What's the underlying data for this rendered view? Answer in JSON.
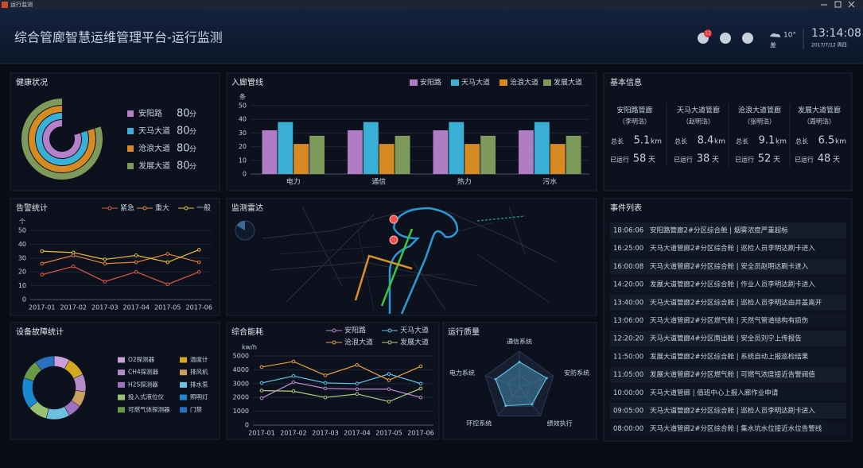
{
  "window": {
    "title": "运行监测"
  },
  "header": {
    "title": "综合管廊智慧运维管理平台-运行监测",
    "badge": 12,
    "temperature": "10°",
    "weather": "差",
    "time": "13:14:08",
    "date": "2017/7/12 周四"
  },
  "chart_data": [
    {
      "type": "radial",
      "title": "健康状况",
      "unit": "分",
      "rlim": [
        0,
        100
      ],
      "categories": [
        "安阳路",
        "天马大道",
        "沧浪大道",
        "发展大道"
      ],
      "values": [
        80,
        80,
        80,
        80
      ],
      "colors": [
        "#b580c8",
        "#3ab0d6",
        "#d88a22",
        "#7e9a5a"
      ]
    },
    {
      "type": "bar",
      "title": "入廊管线",
      "ylabel": "条",
      "categories": [
        "电力",
        "通信",
        "热力",
        "污水"
      ],
      "series": [
        {
          "name": "安阳路",
          "color": "#b07cc6",
          "values": [
            32,
            32,
            32,
            32
          ]
        },
        {
          "name": "天马大道",
          "color": "#3ab0d6",
          "values": [
            38,
            38,
            38,
            38
          ]
        },
        {
          "name": "沧浪大道",
          "color": "#d88a22",
          "values": [
            22,
            22,
            22,
            22
          ]
        },
        {
          "name": "发展大道",
          "color": "#7e9a5a",
          "values": [
            28,
            28,
            28,
            28
          ]
        }
      ],
      "ylim": [
        0,
        50
      ],
      "yticks": [
        0,
        10,
        20,
        30,
        40,
        50
      ],
      "legend": "top-right"
    },
    {
      "type": "line",
      "title": "告警统计",
      "ylabel": "个",
      "categories": [
        "2017-01",
        "2017-02",
        "2017-03",
        "2017-04",
        "2017-05",
        "2017-06"
      ],
      "series": [
        {
          "name": "紧急",
          "color": "#e05a44",
          "values": [
            18,
            24,
            13,
            20,
            11,
            20
          ]
        },
        {
          "name": "重大",
          "color": "#e8853c",
          "values": [
            26,
            32,
            26,
            27,
            33,
            27
          ]
        },
        {
          "name": "一般",
          "color": "#e8c23a",
          "values": [
            35,
            34,
            29,
            32,
            27,
            36
          ]
        }
      ],
      "ylim": [
        0,
        50
      ],
      "yticks": [
        0,
        10,
        20,
        30,
        40,
        50
      ],
      "grid": true,
      "legend": "top"
    },
    {
      "type": "pie",
      "title": "设备故障统计",
      "donut": true,
      "categories": [
        "O2探测器",
        "温度计",
        "CH4探测器",
        "排风机",
        "H2S探测器",
        "排水泵",
        "投入式液位仪",
        "照明灯",
        "可燃气体探测器",
        "门禁"
      ],
      "values": [
        8,
        10,
        9,
        8,
        7,
        12,
        10,
        16,
        10,
        10
      ],
      "colors": [
        "#c9a0dc",
        "#d4a820",
        "#b58ac8",
        "#c9a060",
        "#a070c0",
        "#6cc0e0",
        "#98c070",
        "#1a8ad0",
        "#6a9a48",
        "#2a6fc0"
      ]
    },
    {
      "type": "line",
      "title": "综合能耗",
      "ylabel": "kw/h",
      "categories": [
        "2017-01",
        "2017-02",
        "2017-03",
        "2017-04",
        "2017-05",
        "2017-06"
      ],
      "series": [
        {
          "name": "安阳路",
          "color": "#c08ad0",
          "values": [
            1950,
            3100,
            2650,
            2600,
            2600,
            2000
          ]
        },
        {
          "name": "天马大道",
          "color": "#5ac8e8",
          "values": [
            3050,
            3550,
            3050,
            3000,
            3700,
            3000
          ]
        },
        {
          "name": "沧浪大道",
          "color": "#e8a040",
          "values": [
            4200,
            4600,
            3600,
            4350,
            3250,
            4250
          ]
        },
        {
          "name": "发展大道",
          "color": "#b0d080",
          "values": [
            2500,
            2450,
            2000,
            2250,
            1700,
            2650
          ]
        }
      ],
      "ylim": [
        0,
        5000
      ],
      "yticks": [
        0,
        1000,
        2000,
        3000,
        4000,
        5000
      ],
      "grid": true,
      "legend": "top"
    },
    {
      "type": "radar",
      "title": "运行质量",
      "categories": [
        "通信系统",
        "安防系统",
        "绩效执行",
        "环控系统",
        "电力系统"
      ],
      "values": [
        70,
        80,
        60,
        65,
        70
      ],
      "rlim": [
        0,
        100
      ],
      "color": "#5ab8e0"
    }
  ],
  "info": {
    "title": "基本信息",
    "length_label": "总长",
    "length_unit": "km",
    "run_label": "已运行",
    "run_unit": "天",
    "rows": [
      {
        "name": "安阳路管廊",
        "manager": "（李明浩）",
        "length": 5.1,
        "days": 58
      },
      {
        "name": "天马大道管廊",
        "manager": "（赵明浩）",
        "length": 8.4,
        "days": 38
      },
      {
        "name": "沧浪大道管廊",
        "manager": "（张明浩）",
        "length": 9.1,
        "days": 52
      },
      {
        "name": "发展大道管廊",
        "manager": "（周明浩）",
        "length": 6.5,
        "days": 48
      }
    ]
  },
  "radar_map": {
    "title": "监测雷达"
  },
  "events": {
    "title": "事件列表",
    "rows": [
      {
        "time": "18:06:06",
        "text": "安阳路管廊2#分区综合舱 | 烟雾浓度严重超标",
        "color": "#f05a3c"
      },
      {
        "time": "16:25:00",
        "text": "天马大道管廊2#分区综合舱 | 巡检人员李明达刷卡进入",
        "color": "#9aa6b8"
      },
      {
        "time": "16:00:08",
        "text": "天马大道管廊2#分区综合舱 | 安全员赵明达刷卡进入",
        "color": "#9aa6b8"
      },
      {
        "time": "14:20:00",
        "text": "发展大道管廊2#分区综合舱 | 作业人员李明达刷卡进入",
        "color": "#9aa6b8"
      },
      {
        "time": "13:40:00",
        "text": "天马大道管廊2#分区综合舱 | 巡检人员李明达由井盖离开",
        "color": "#9aa6b8"
      },
      {
        "time": "13:06:00",
        "text": "天马大道管廊2#分区燃气舱 | 天然气管道结构有损伤",
        "color": "#f05a3c"
      },
      {
        "time": "12:20:20",
        "text": "天马大道管廊4#分区南出舱 | 安全员刘宁上传报告",
        "color": "#9aa6b8"
      },
      {
        "time": "11:50:00",
        "text": "发展大道管廊2#分区综合舱 | 系统自动上报巡检结果",
        "color": "#9aa6b8"
      },
      {
        "time": "11:05:00",
        "text": "发展大道管廊2#分区燃气舱 | 可燃气浓度接近告警阀值",
        "color": "#9aa6b8"
      },
      {
        "time": "10:00:00",
        "text": "天马大道管廊 | 值班中心上报入廊作业申请",
        "color": "#9aa6b8"
      },
      {
        "time": "09:05:00",
        "text": "天马大道管廊2#分区综合舱 | 巡检人员李明达刷卡进入",
        "color": "#9aa6b8"
      },
      {
        "time": "08:00:00",
        "text": "天马大道管廊2#分区综合舱 | 集水坑水位接近水位告警线",
        "color": "#9aa6b8"
      }
    ]
  }
}
